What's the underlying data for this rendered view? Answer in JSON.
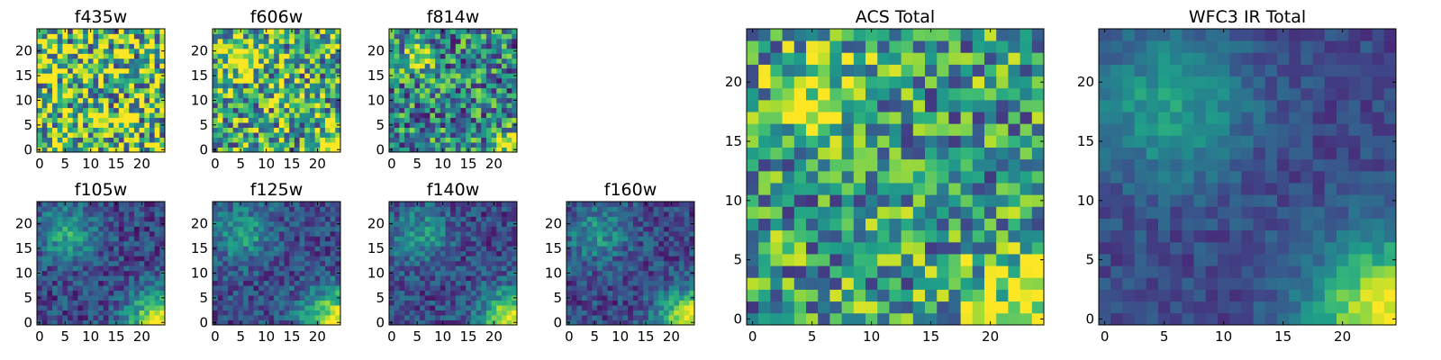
{
  "chart_data": [
    {
      "type": "heatmap",
      "title": "f435w",
      "xticks": [
        0,
        5,
        10,
        15,
        20
      ],
      "yticks": [
        0,
        5,
        10,
        15,
        20
      ],
      "xlim": [
        0,
        25
      ],
      "ylim": [
        0,
        25
      ],
      "grid": false,
      "colormap": "viridis",
      "pattern": {
        "base": 0.72,
        "noise": 0.55,
        "blobs": []
      }
    },
    {
      "type": "heatmap",
      "title": "f606w",
      "xticks": [
        0,
        5,
        10,
        15,
        20
      ],
      "yticks": [
        0,
        5,
        10,
        15,
        20
      ],
      "xlim": [
        0,
        25
      ],
      "ylim": [
        0,
        25
      ],
      "grid": false,
      "colormap": "viridis",
      "pattern": {
        "base": 0.6,
        "noise": 0.45,
        "blobs": [
          [
            5.5,
            18.5,
            2.5,
            0.45
          ],
          [
            23.5,
            0.5,
            2.2,
            0.5
          ]
        ]
      }
    },
    {
      "type": "heatmap",
      "title": "f814w",
      "xticks": [
        0,
        5,
        10,
        15,
        20
      ],
      "yticks": [
        0,
        5,
        10,
        15,
        20
      ],
      "xlim": [
        0,
        25
      ],
      "ylim": [
        0,
        25
      ],
      "grid": false,
      "colormap": "viridis",
      "pattern": {
        "base": 0.45,
        "noise": 0.4,
        "blobs": [
          [
            5,
            18.5,
            2.2,
            0.5
          ],
          [
            23.5,
            0.5,
            2.2,
            0.55
          ]
        ]
      }
    },
    {
      "type": "heatmap",
      "title": "f105w",
      "xticks": [
        0,
        5,
        10,
        15,
        20
      ],
      "yticks": [
        0,
        5,
        10,
        15,
        20
      ],
      "xlim": [
        0,
        25
      ],
      "ylim": [
        0,
        25
      ],
      "grid": false,
      "colormap": "viridis",
      "pattern": {
        "base": 0.22,
        "noise": 0.18,
        "blobs": [
          [
            5.5,
            18,
            4,
            0.35
          ],
          [
            24,
            0,
            4.5,
            0.75
          ]
        ]
      }
    },
    {
      "type": "heatmap",
      "title": "f125w",
      "xticks": [
        0,
        5,
        10,
        15,
        20
      ],
      "yticks": [
        0,
        5,
        10,
        15,
        20
      ],
      "xlim": [
        0,
        25
      ],
      "ylim": [
        0,
        25
      ],
      "grid": false,
      "colormap": "viridis",
      "pattern": {
        "base": 0.23,
        "noise": 0.18,
        "blobs": [
          [
            5.5,
            18,
            4,
            0.32
          ],
          [
            24,
            0,
            4.5,
            0.75
          ]
        ]
      }
    },
    {
      "type": "heatmap",
      "title": "f140w",
      "xticks": [
        0,
        5,
        10,
        15,
        20
      ],
      "yticks": [
        0,
        5,
        10,
        15,
        20
      ],
      "xlim": [
        0,
        25
      ],
      "ylim": [
        0,
        25
      ],
      "grid": false,
      "colormap": "viridis",
      "pattern": {
        "base": 0.22,
        "noise": 0.18,
        "blobs": [
          [
            5.5,
            18,
            4,
            0.3
          ],
          [
            24,
            0,
            4.5,
            0.78
          ]
        ]
      }
    },
    {
      "type": "heatmap",
      "title": "f160w",
      "xticks": [
        0,
        5,
        10,
        15,
        20
      ],
      "yticks": [
        0,
        5,
        10,
        15,
        20
      ],
      "xlim": [
        0,
        25
      ],
      "ylim": [
        0,
        25
      ],
      "grid": false,
      "colormap": "viridis",
      "pattern": {
        "base": 0.22,
        "noise": 0.17,
        "blobs": [
          [
            5.5,
            18,
            4,
            0.3
          ],
          [
            24,
            0,
            4.5,
            0.8
          ]
        ]
      }
    },
    {
      "type": "heatmap",
      "title": "ACS Total",
      "xticks": [
        0,
        5,
        10,
        15,
        20
      ],
      "yticks": [
        0,
        5,
        10,
        15,
        20
      ],
      "xlim": [
        0,
        25
      ],
      "ylim": [
        0,
        25
      ],
      "grid": false,
      "colormap": "viridis",
      "pattern": {
        "base": 0.55,
        "noise": 0.4,
        "blobs": [
          [
            5.5,
            18.5,
            2.5,
            0.45
          ],
          [
            23.5,
            0.5,
            3.5,
            0.5
          ]
        ]
      }
    },
    {
      "type": "heatmap",
      "title": "WFC3 IR Total",
      "xticks": [
        0,
        5,
        10,
        15,
        20
      ],
      "yticks": [
        0,
        5,
        10,
        15,
        20
      ],
      "xlim": [
        0,
        25
      ],
      "ylim": [
        0,
        25
      ],
      "grid": false,
      "colormap": "viridis",
      "pattern": {
        "base": 0.22,
        "noise": 0.1,
        "blobs": [
          [
            5.5,
            18,
            4.5,
            0.35
          ],
          [
            24,
            0,
            4.5,
            0.8
          ]
        ]
      }
    }
  ]
}
